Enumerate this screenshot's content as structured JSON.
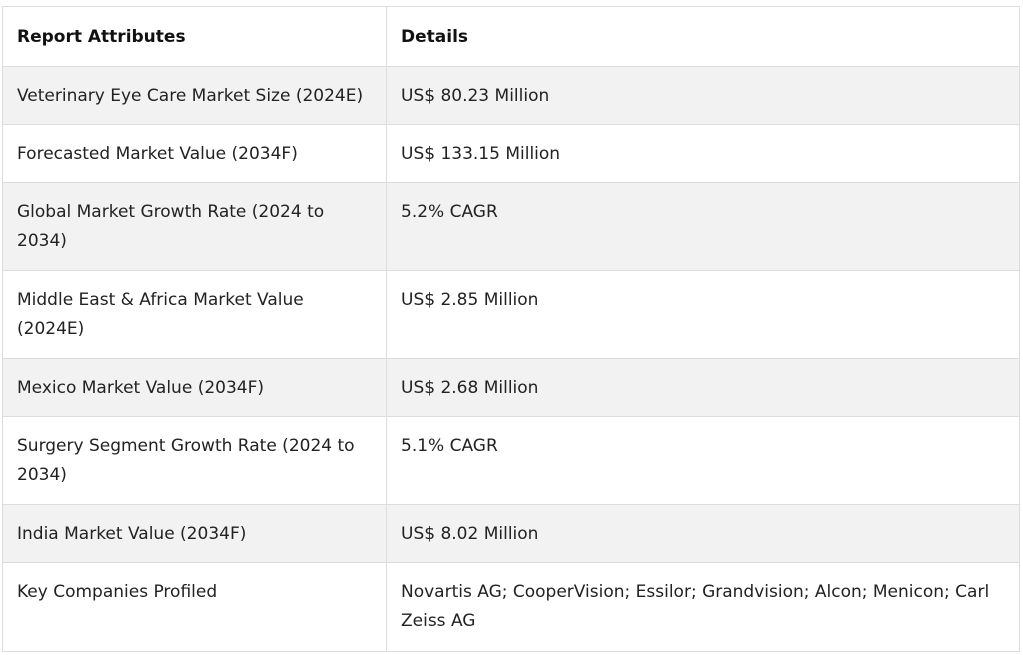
{
  "table": {
    "headers": [
      "Report Attributes",
      "Details"
    ],
    "rows": [
      [
        "Veterinary Eye Care Market Size (2024E)",
        "US$ 80.23 Million"
      ],
      [
        "Forecasted Market Value (2034F)",
        "US$ 133.15 Million"
      ],
      [
        "Global Market Growth Rate (2024 to 2034)",
        "5.2% CAGR"
      ],
      [
        "Middle East & Africa Market Value (2024E)",
        "US$ 2.85 Million"
      ],
      [
        "Mexico Market Value (2034F)",
        "US$ 2.68 Million"
      ],
      [
        "Surgery Segment Growth Rate (2024 to 2034)",
        "5.1% CAGR"
      ],
      [
        "India Market Value (2034F)",
        "US$ 8.02 Million"
      ],
      [
        "Key Companies Profiled",
        "Novartis AG; CooperVision; Essilor; Grandvision; Alcon; Menicon; Carl Zeiss AG"
      ]
    ]
  }
}
